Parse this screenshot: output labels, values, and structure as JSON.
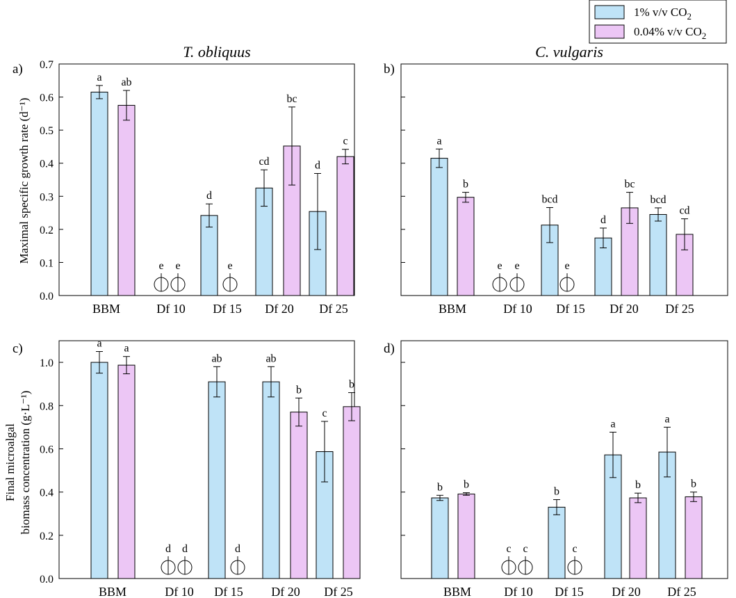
{
  "legend": {
    "items": [
      {
        "label": "1% v/v CO",
        "sub": "2",
        "color": "#bfe3f7"
      },
      {
        "label": "0.04% v/v CO",
        "sub": "2",
        "color": "#ecc6f5"
      }
    ]
  },
  "colors": {
    "series1": "#bfe3f7",
    "series2": "#ecc6f5",
    "stroke": "#000000"
  },
  "column_titles": {
    "left": "T. obliquus",
    "right": "C. vulgaris"
  },
  "row_labels": {
    "top": "Maximal specific growth rate (d⁻¹)",
    "bottom_line1": "Final microalgal",
    "bottom_line2": "biomass concentration (g·L⁻¹)"
  },
  "chart_data": [
    {
      "id": "a",
      "panel_label": "a)",
      "type": "bar",
      "ylim": [
        0,
        0.7
      ],
      "yticks": [
        0.0,
        0.1,
        0.2,
        0.3,
        0.4,
        0.5,
        0.6,
        0.7
      ],
      "ytick_labels": [
        "0.0",
        "0.1",
        "0.2",
        "0.3",
        "0.4",
        "0.5",
        "0.6",
        "0.7"
      ],
      "show_tick_labels": true,
      "categories": [
        "BBM",
        "Df 10",
        "Df 15",
        "Df 20",
        "Df 25"
      ],
      "series": [
        {
          "name": "1% v/v CO2",
          "values": [
            0.615,
            0,
            0.242,
            0.325,
            0.254
          ],
          "errors": [
            0.02,
            0,
            0.035,
            0.055,
            0.115
          ],
          "letters": [
            "a",
            "e",
            "d",
            "cd",
            "d"
          ]
        },
        {
          "name": "0.04% v/v CO2",
          "values": [
            0.575,
            0,
            0,
            0.452,
            0.42
          ],
          "errors": [
            0.045,
            0,
            0,
            0.118,
            0.022
          ],
          "letters": [
            "ab",
            "e",
            "e",
            "bc",
            "c"
          ]
        }
      ]
    },
    {
      "id": "b",
      "panel_label": "b)",
      "type": "bar",
      "ylim": [
        0,
        0.7
      ],
      "yticks": [
        0.0,
        0.1,
        0.2,
        0.3,
        0.4,
        0.5,
        0.6,
        0.7
      ],
      "ytick_labels": [],
      "show_tick_labels": false,
      "categories": [
        "BBM",
        "Df 10",
        "Df 15",
        "Df 20",
        "Df 25"
      ],
      "series": [
        {
          "name": "1% v/v CO2",
          "values": [
            0.415,
            0,
            0.213,
            0.174,
            0.245
          ],
          "errors": [
            0.028,
            0,
            0.053,
            0.03,
            0.02
          ],
          "letters": [
            "a",
            "e",
            "bcd",
            "d",
            "bcd"
          ]
        },
        {
          "name": "0.04% v/v CO2",
          "values": [
            0.297,
            0,
            0,
            0.265,
            0.185
          ],
          "errors": [
            0.015,
            0,
            0,
            0.047,
            0.047
          ],
          "letters": [
            "b",
            "e",
            "e",
            "bc",
            "cd"
          ]
        }
      ]
    },
    {
      "id": "c",
      "panel_label": "c)",
      "type": "bar",
      "ylim": [
        0,
        1.1
      ],
      "yticks": [
        0.0,
        0.2,
        0.4,
        0.6,
        0.8,
        1.0
      ],
      "ytick_labels": [
        "0.0",
        "0.2",
        "0.4",
        "0.6",
        "0.8",
        "1.0"
      ],
      "show_tick_labels": true,
      "categories": [
        "BBM",
        "Df 10",
        "Df 15",
        "Df 20",
        "Df 25"
      ],
      "series": [
        {
          "name": "1% v/v CO2",
          "values": [
            1.0,
            0,
            0.91,
            0.91,
            0.587
          ],
          "errors": [
            0.05,
            0,
            0.07,
            0.07,
            0.14
          ],
          "letters": [
            "a",
            "d",
            "ab",
            "ab",
            "c"
          ]
        },
        {
          "name": "0.04% v/v CO2",
          "values": [
            0.987,
            0,
            0,
            0.77,
            0.795
          ],
          "errors": [
            0.04,
            0,
            0,
            0.065,
            0.065
          ],
          "letters": [
            "a",
            "d",
            "d",
            "b",
            "b"
          ]
        }
      ]
    },
    {
      "id": "d",
      "panel_label": "d)",
      "type": "bar",
      "ylim": [
        0,
        1.1
      ],
      "yticks": [
        0.0,
        0.2,
        0.4,
        0.6,
        0.8,
        1.0
      ],
      "ytick_labels": [],
      "show_tick_labels": false,
      "categories": [
        "BBM",
        "Df 10",
        "Df 15",
        "Df 20",
        "Df 25"
      ],
      "series": [
        {
          "name": "1% v/v CO2",
          "values": [
            0.373,
            0,
            0.33,
            0.572,
            0.585
          ],
          "errors": [
            0.012,
            0,
            0.035,
            0.105,
            0.115
          ],
          "letters": [
            "b",
            "c",
            "b",
            "a",
            "a"
          ]
        },
        {
          "name": "0.04% v/v CO2",
          "values": [
            0.391,
            0,
            0,
            0.373,
            0.378
          ],
          "errors": [
            0.006,
            0,
            0,
            0.022,
            0.022
          ],
          "letters": [
            "b",
            "c",
            "c",
            "b",
            "b"
          ]
        }
      ]
    }
  ]
}
